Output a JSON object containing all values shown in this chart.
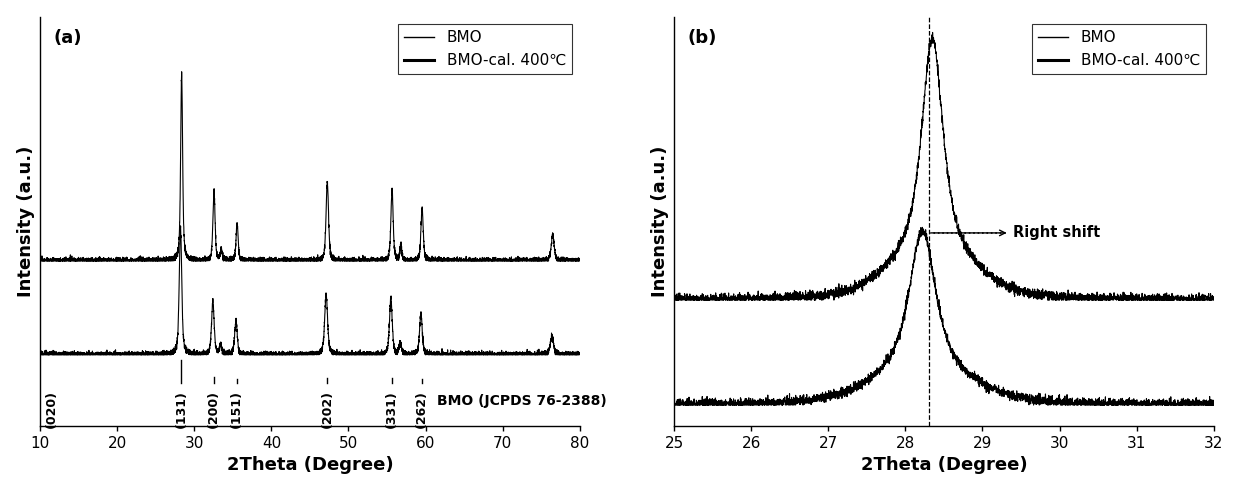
{
  "panel_a": {
    "xlabel": "2Theta (Degree)",
    "ylabel": "Intensity (a.u.)",
    "label": "(a)",
    "xmin": 10,
    "xmax": 80,
    "xticks": [
      10,
      20,
      30,
      40,
      50,
      60,
      70,
      80
    ],
    "legend": [
      "BMO",
      "BMO-cal. 400℃"
    ],
    "reference_label": "BMO (JCPDS 76-2388)",
    "miller_indices": [
      {
        "label": "(020)",
        "x": 11.5
      },
      {
        "label": "(131)",
        "x": 28.3
      },
      {
        "label": "(200)",
        "x": 32.5
      },
      {
        "label": "(151)",
        "x": 35.5
      },
      {
        "label": "(202)",
        "x": 47.2
      },
      {
        "label": "(331)",
        "x": 55.6
      },
      {
        "label": "(262)",
        "x": 59.5
      }
    ],
    "ref_line_peaks": [
      28.3,
      32.5,
      35.5,
      47.2,
      55.6,
      59.5
    ],
    "ref_line_amps": [
      1.0,
      0.25,
      0.18,
      0.22,
      0.2,
      0.15
    ]
  },
  "panel_b": {
    "xlabel": "2Theta (Degree)",
    "ylabel": "Intensity (a.u.)",
    "label": "(b)",
    "xmin": 25,
    "xmax": 32,
    "xticks": [
      25,
      26,
      27,
      28,
      29,
      30,
      31,
      32
    ],
    "legend": [
      "BMO",
      "BMO-cal. 400℃"
    ],
    "dashed_line_x": 28.3,
    "annotation": "Right shift"
  },
  "line_color": "#000000",
  "background_color": "#ffffff",
  "fontsize_label": 13,
  "fontsize_tick": 11,
  "fontsize_panel": 13,
  "fontsize_legend": 11,
  "fontsize_miller": 9
}
